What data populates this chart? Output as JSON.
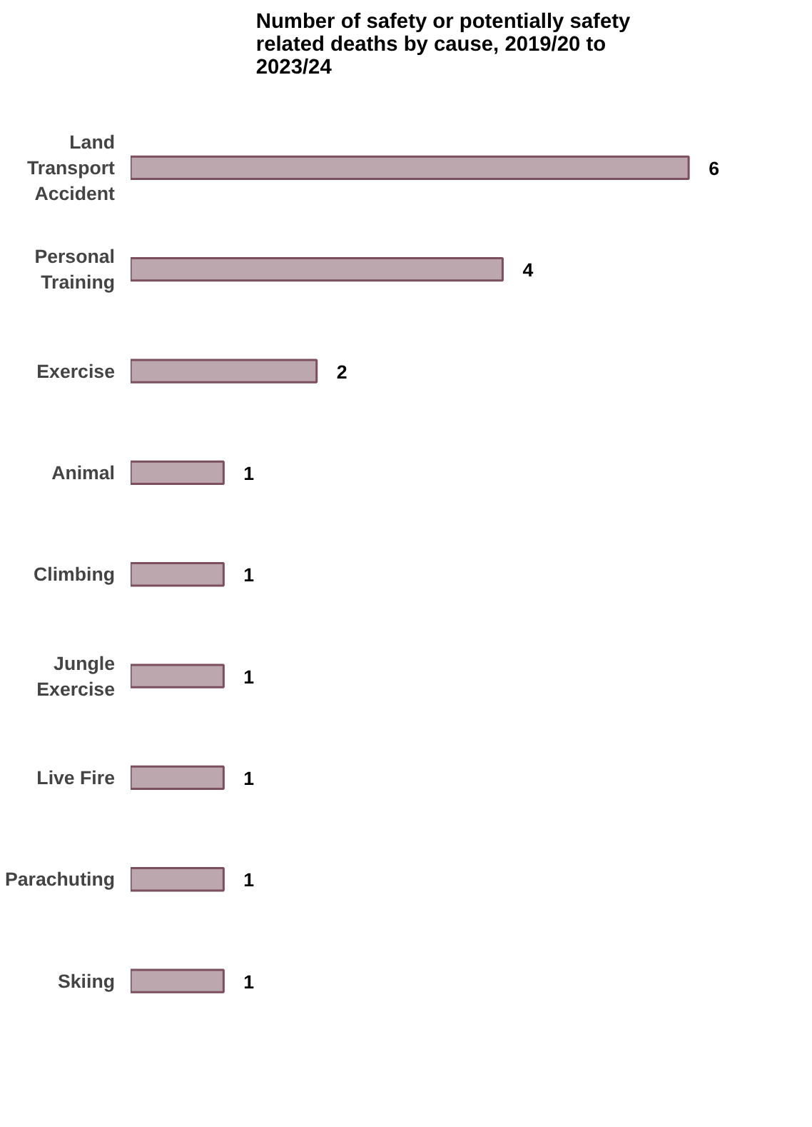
{
  "chart_data": {
    "type": "bar",
    "orientation": "horizontal",
    "title": "Number of safety or potentially safety related deaths by cause, 2019/20 to 2023/24",
    "categories": [
      "Land Transport Accident",
      "Personal Training",
      "Exercise",
      "Animal",
      "Climbing",
      "Jungle Exercise",
      "Live Fire",
      "Parachuting",
      "Skiing"
    ],
    "values": [
      6,
      4,
      2,
      1,
      1,
      1,
      1,
      1,
      1
    ],
    "color": "#bba7ad",
    "data_labels": true
  }
}
